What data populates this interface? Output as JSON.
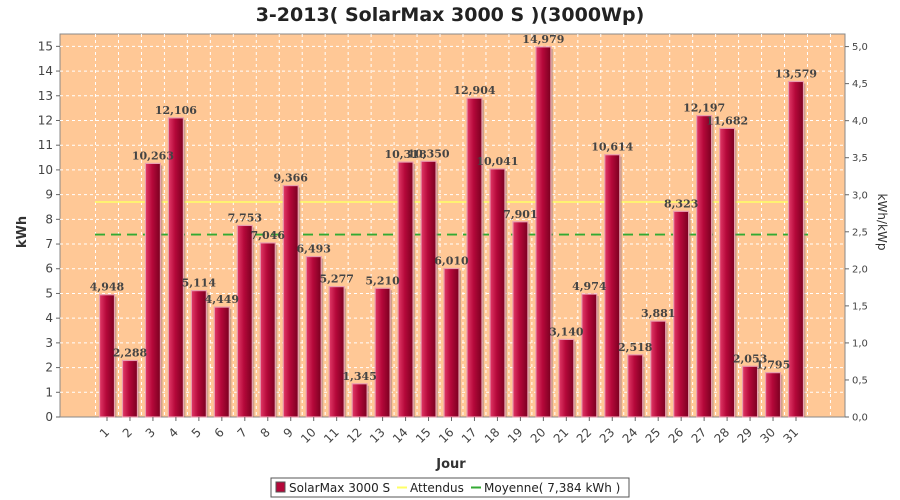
{
  "chart_data": {
    "type": "bar",
    "title": "3-2013( SolarMax 3000 S )(3000Wp)",
    "xlabel": "Jour",
    "ylabel": "kWh",
    "ylabel_right": "kWh/kWp",
    "ylim": [
      0,
      15.5
    ],
    "ylim_right": [
      0,
      5.17
    ],
    "yticks": [
      "0",
      "1",
      "2",
      "3",
      "4",
      "5",
      "6",
      "7",
      "8",
      "9",
      "10",
      "11",
      "12",
      "13",
      "14",
      "15"
    ],
    "yticks_right": [
      "0,0",
      "0,5",
      "1,0",
      "1,5",
      "2,0",
      "2,5",
      "3,0",
      "3,5",
      "4,0",
      "4,5",
      "5,0"
    ],
    "categories": [
      "1",
      "2",
      "3",
      "4",
      "5",
      "6",
      "7",
      "8",
      "9",
      "10",
      "11",
      "12",
      "13",
      "14",
      "15",
      "16",
      "17",
      "18",
      "19",
      "20",
      "21",
      "22",
      "23",
      "24",
      "25",
      "26",
      "27",
      "28",
      "29",
      "30",
      "31"
    ],
    "series": [
      {
        "name": "SolarMax 3000 S",
        "values": [
          4.948,
          2.288,
          10.263,
          12.106,
          5.114,
          4.449,
          7.753,
          7.046,
          9.366,
          6.493,
          5.277,
          1.345,
          5.21,
          10.318,
          10.35,
          6.01,
          12.904,
          10.041,
          7.901,
          14.979,
          3.14,
          4.974,
          10.614,
          2.518,
          3.881,
          8.323,
          12.197,
          11.682,
          2.053,
          1.795,
          13.579
        ],
        "labels": [
          "4,948",
          "2,288",
          "10,263",
          "12,106",
          "5,114",
          "4,449",
          "7,753",
          "7,046",
          "9,366",
          "6,493",
          "5,277",
          "1,345",
          "5,210",
          "10,318",
          "10,350",
          "6,010",
          "12,904",
          "10,041",
          "7,901",
          "14,979",
          "3,140",
          "4,974",
          "10,614",
          "2,518",
          "3,881",
          "8,323",
          "12,197",
          "11,682",
          "2,053",
          "1,795",
          "13,579"
        ],
        "color": "#b5083a"
      }
    ],
    "reference_lines": [
      {
        "name": "Attendus",
        "value": 8.7,
        "color": "#ffff66"
      },
      {
        "name": "Moyenne( 7,384 kWh )",
        "value": 7.384,
        "color": "#33aa33"
      }
    ],
    "grid": true,
    "plot_background": "#ffc896",
    "legend_position": "bottom"
  }
}
